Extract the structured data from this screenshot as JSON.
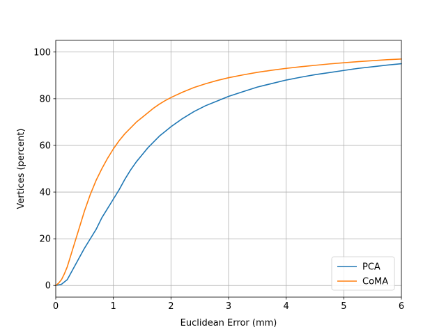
{
  "chart_data": {
    "type": "line",
    "title": "",
    "xlabel": "Euclidean Error (mm)",
    "ylabel": "Vertices (percent)",
    "xlim": [
      0,
      6
    ],
    "ylim": [
      -5,
      105
    ],
    "xticks": [
      0,
      1,
      2,
      3,
      4,
      5,
      6
    ],
    "yticks": [
      0,
      20,
      40,
      60,
      80,
      100
    ],
    "grid": true,
    "legend_position": "lower-right",
    "series": [
      {
        "name": "PCA",
        "color": "#1f77b4",
        "x": [
          0,
          0.1,
          0.2,
          0.3,
          0.4,
          0.5,
          0.6,
          0.7,
          0.8,
          0.9,
          1.0,
          1.1,
          1.2,
          1.3,
          1.4,
          1.5,
          1.6,
          1.7,
          1.8,
          1.9,
          2.0,
          2.2,
          2.4,
          2.6,
          2.8,
          3.0,
          3.25,
          3.5,
          3.75,
          4.0,
          4.25,
          4.5,
          4.75,
          5.0,
          5.25,
          5.5,
          5.75,
          6.0
        ],
        "y": [
          0,
          0.5,
          2.5,
          7,
          11.5,
          16,
          20,
          24,
          29,
          33,
          37,
          41,
          45.5,
          49.5,
          53,
          56,
          59,
          61.5,
          64,
          66,
          68,
          71.5,
          74.5,
          77,
          79,
          81,
          83,
          85,
          86.5,
          88,
          89.2,
          90.3,
          91.2,
          92.1,
          93,
          93.7,
          94.4,
          95
        ]
      },
      {
        "name": "CoMA",
        "color": "#ff7f0e",
        "x": [
          0,
          0.05,
          0.1,
          0.15,
          0.2,
          0.25,
          0.3,
          0.4,
          0.5,
          0.6,
          0.7,
          0.8,
          0.9,
          1.0,
          1.1,
          1.2,
          1.3,
          1.4,
          1.5,
          1.6,
          1.7,
          1.8,
          1.9,
          2.0,
          2.2,
          2.4,
          2.6,
          2.8,
          3.0,
          3.25,
          3.5,
          3.75,
          4.0,
          4.25,
          4.5,
          4.75,
          5.0,
          5.25,
          5.5,
          5.75,
          6.0
        ],
        "y": [
          0,
          1,
          2.5,
          5,
          8,
          12,
          16,
          24,
          32,
          39,
          45,
          50,
          54.5,
          58.5,
          62,
          65,
          67.5,
          70,
          72,
          74,
          76,
          77.7,
          79.2,
          80.5,
          82.8,
          84.8,
          86.4,
          87.8,
          89,
          90.2,
          91.3,
          92.2,
          93,
          93.7,
          94.3,
          94.9,
          95.4,
          95.9,
          96.3,
          96.7,
          97
        ]
      }
    ]
  }
}
